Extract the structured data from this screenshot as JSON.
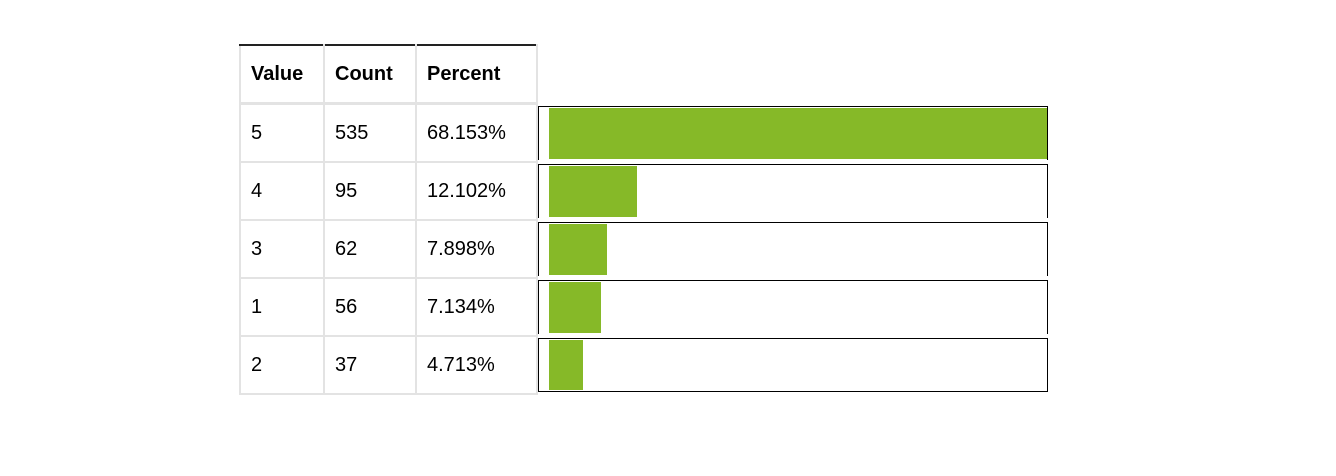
{
  "table": {
    "headers": [
      "Value",
      "Count",
      "Percent"
    ]
  },
  "chart_data": {
    "type": "bar",
    "orientation": "horizontal",
    "bar_color": "#86b928",
    "columns": [
      "Value",
      "Count",
      "Percent"
    ],
    "rows": [
      {
        "value": "5",
        "count": "535",
        "percent": "68.153%",
        "fraction": 0.68153
      },
      {
        "value": "4",
        "count": "95",
        "percent": "12.102%",
        "fraction": 0.12102
      },
      {
        "value": "3",
        "count": "62",
        "percent": "7.898%",
        "fraction": 0.07898
      },
      {
        "value": "1",
        "count": "56",
        "percent": "7.134%",
        "fraction": 0.07134
      },
      {
        "value": "2",
        "count": "37",
        "percent": "4.713%",
        "fraction": 0.04713
      }
    ]
  }
}
